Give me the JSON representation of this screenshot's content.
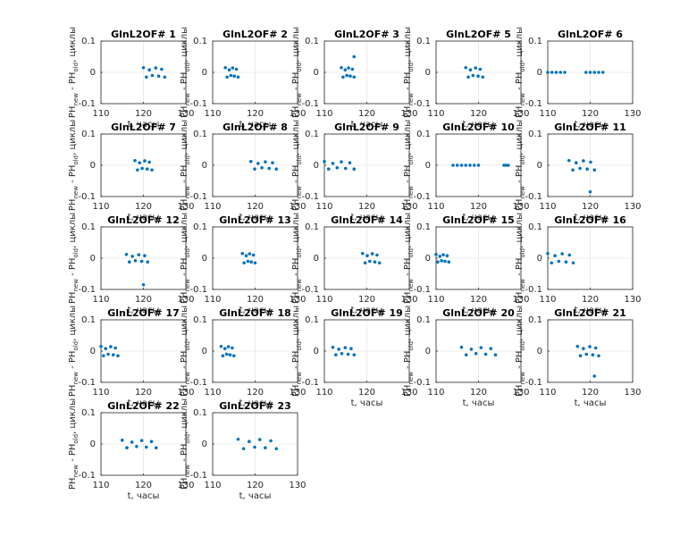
{
  "chart_data": [
    {
      "type": "scatter",
      "title": "GlnL2OF# 1",
      "xlabel": "t, часы",
      "ylabel_parts": [
        "PH",
        "new",
        " - PH",
        "old",
        ", циклы"
      ],
      "xlim": [
        110,
        130
      ],
      "xticks": [
        110,
        120,
        130
      ],
      "ylim": [
        -0.1,
        0.1
      ],
      "yticks": [
        -0.1,
        0,
        0.1
      ],
      "grid": true,
      "color": "#0072bd",
      "x": [
        120,
        120.7,
        121.4,
        122.1,
        122.9,
        123.6,
        124.3,
        125
      ],
      "y": [
        0.015,
        -0.015,
        0.008,
        -0.01,
        0.014,
        -0.012,
        0.01,
        -0.015
      ]
    },
    {
      "type": "scatter",
      "title": "GlnL2OF# 2",
      "xlabel": "t, часы",
      "ylabel_parts": [
        "PH",
        "new",
        " - PH",
        "old",
        ", циклы"
      ],
      "xlim": [
        110,
        130
      ],
      "xticks": [
        110,
        120,
        130
      ],
      "ylim": [
        -0.1,
        0.1
      ],
      "yticks": [
        -0.1,
        0,
        0.1
      ],
      "grid": true,
      "color": "#0072bd",
      "x": [
        113,
        113.4,
        113.9,
        114.3,
        114.7,
        115.1,
        115.6,
        116
      ],
      "y": [
        0.015,
        -0.015,
        0.008,
        -0.01,
        0.014,
        -0.012,
        0.01,
        -0.015
      ]
    },
    {
      "type": "scatter",
      "title": "GlnL2OF# 3",
      "xlabel": "t, часы",
      "ylabel_parts": [
        "PH",
        "new",
        " - PH",
        "old",
        ", циклы"
      ],
      "xlim": [
        110,
        130
      ],
      "xticks": [
        110,
        120,
        130
      ],
      "ylim": [
        -0.1,
        0.1
      ],
      "yticks": [
        -0.1,
        0,
        0.1
      ],
      "grid": true,
      "color": "#0072bd",
      "x": [
        114,
        114.4,
        114.9,
        115.3,
        115.7,
        116.1,
        116.6,
        117,
        117
      ],
      "y": [
        0.015,
        -0.015,
        0.008,
        -0.01,
        0.014,
        -0.012,
        0.01,
        -0.015,
        0.05
      ]
    },
    {
      "type": "scatter",
      "title": "GlnL2OF# 5",
      "xlabel": "t, часы",
      "ylabel_parts": [
        "PH",
        "new",
        " - PH",
        "old",
        ", циклы"
      ],
      "xlim": [
        110,
        130
      ],
      "xticks": [
        110,
        120,
        130
      ],
      "ylim": [
        -0.1,
        0.1
      ],
      "yticks": [
        -0.1,
        0,
        0.1
      ],
      "grid": true,
      "color": "#0072bd",
      "x": [
        117,
        117.6,
        118.1,
        118.7,
        119.3,
        119.9,
        120.4,
        121
      ],
      "y": [
        0.015,
        -0.015,
        0.008,
        -0.01,
        0.014,
        -0.012,
        0.01,
        -0.015
      ]
    },
    {
      "type": "scatter",
      "title": "GlnL2OF# 6",
      "xlabel": "t, часы",
      "ylabel_parts": [
        "PH",
        "new",
        " - PH",
        "old",
        ", циклы"
      ],
      "xlim": [
        110,
        130
      ],
      "xticks": [
        110,
        120,
        130
      ],
      "ylim": [
        -0.1,
        0.1
      ],
      "yticks": [
        -0.1,
        0,
        0.1
      ],
      "grid": true,
      "color": "#0072bd",
      "x": [
        110,
        111,
        112,
        113,
        114,
        119,
        120,
        121,
        122,
        123
      ],
      "y": [
        0,
        0,
        0,
        0,
        0,
        0,
        0,
        0,
        0,
        0
      ]
    },
    {
      "type": "scatter",
      "title": "GlnL2OF# 7",
      "xlabel": "t, часы",
      "ylabel_parts": [
        "PH",
        "new",
        " - PH",
        "old",
        ", циклы"
      ],
      "xlim": [
        110,
        130
      ],
      "xticks": [
        110,
        120,
        130
      ],
      "ylim": [
        -0.1,
        0.1
      ],
      "yticks": [
        -0.1,
        0,
        0.1
      ],
      "grid": true,
      "color": "#0072bd",
      "x": [
        118,
        118.6,
        119.1,
        119.7,
        120.3,
        120.9,
        121.4,
        122
      ],
      "y": [
        0.015,
        -0.015,
        0.008,
        -0.01,
        0.014,
        -0.012,
        0.01,
        -0.015
      ]
    },
    {
      "type": "scatter",
      "title": "GlnL2OF# 8",
      "xlabel": "t, часы",
      "ylabel_parts": [
        "PH",
        "new",
        " - PH",
        "old",
        ", циклы"
      ],
      "xlim": [
        110,
        130
      ],
      "xticks": [
        110,
        120,
        130
      ],
      "ylim": [
        -0.1,
        0.1
      ],
      "yticks": [
        -0.1,
        0,
        0.1
      ],
      "grid": true,
      "color": "#0072bd",
      "x": [
        119,
        119.9,
        120.7,
        121.6,
        122.4,
        123.3,
        124.1,
        125
      ],
      "y": [
        0.012,
        -0.012,
        0.006,
        -0.008,
        0.011,
        -0.01,
        0.008,
        -0.012
      ]
    },
    {
      "type": "scatter",
      "title": "GlnL2OF# 9",
      "xlabel": "t, часы",
      "ylabel_parts": [
        "PH",
        "new",
        " - PH",
        "old",
        ", циклы"
      ],
      "xlim": [
        110,
        130
      ],
      "xticks": [
        110,
        120,
        130
      ],
      "ylim": [
        -0.1,
        0.1
      ],
      "yticks": [
        -0.1,
        0,
        0.1
      ],
      "grid": true,
      "color": "#0072bd",
      "x": [
        110,
        111,
        112,
        113,
        114,
        115,
        116,
        117
      ],
      "y": [
        0.012,
        -0.012,
        0.006,
        -0.008,
        0.011,
        -0.01,
        0.008,
        -0.012
      ]
    },
    {
      "type": "scatter",
      "title": "GlnL2OF# 10",
      "xlabel": "t, часы",
      "ylabel_parts": [
        "PH",
        "new",
        " - PH",
        "old",
        ", циклы"
      ],
      "xlim": [
        110,
        130
      ],
      "xticks": [
        110,
        120,
        130
      ],
      "ylim": [
        -0.1,
        0.1
      ],
      "yticks": [
        -0.1,
        0,
        0.1
      ],
      "grid": true,
      "color": "#0072bd",
      "x": [
        114,
        115,
        116,
        117,
        118,
        119,
        120,
        126,
        126.5,
        127
      ],
      "y": [
        0,
        0,
        0,
        0,
        0,
        0,
        0,
        0,
        0,
        0
      ]
    },
    {
      "type": "scatter",
      "title": "GlnL2OF# 11",
      "xlabel": "t, часы",
      "ylabel_parts": [
        "PH",
        "new",
        " - PH",
        "old",
        ", циклы"
      ],
      "xlim": [
        110,
        130
      ],
      "xticks": [
        110,
        120,
        130
      ],
      "ylim": [
        -0.1,
        0.1
      ],
      "yticks": [
        -0.1,
        0,
        0.1
      ],
      "grid": true,
      "color": "#0072bd",
      "x": [
        115,
        115.9,
        116.7,
        117.6,
        118.4,
        119.3,
        120.1,
        121,
        120
      ],
      "y": [
        0.015,
        -0.015,
        0.008,
        -0.01,
        0.014,
        -0.012,
        0.01,
        -0.015,
        -0.085
      ]
    },
    {
      "type": "scatter",
      "title": "GlnL2OF# 12",
      "xlabel": "t, часы",
      "ylabel_parts": [
        "PH",
        "new",
        " - PH",
        "old",
        ", циклы"
      ],
      "xlim": [
        110,
        130
      ],
      "xticks": [
        110,
        120,
        130
      ],
      "ylim": [
        -0.1,
        0.1
      ],
      "yticks": [
        -0.1,
        0,
        0.1
      ],
      "grid": true,
      "color": "#0072bd",
      "x": [
        116,
        116.7,
        117.4,
        118.1,
        118.9,
        119.6,
        120.3,
        121,
        120
      ],
      "y": [
        0.012,
        -0.012,
        0.006,
        -0.008,
        0.011,
        -0.01,
        0.008,
        -0.012,
        -0.085
      ]
    },
    {
      "type": "scatter",
      "title": "GlnL2OF# 13",
      "xlabel": "t, часы",
      "ylabel_parts": [
        "PH",
        "new",
        " - PH",
        "old",
        ", циклы"
      ],
      "xlim": [
        110,
        130
      ],
      "xticks": [
        110,
        120,
        130
      ],
      "ylim": [
        -0.1,
        0.1
      ],
      "yticks": [
        -0.1,
        0,
        0.1
      ],
      "grid": true,
      "color": "#0072bd",
      "x": [
        117,
        117.4,
        117.9,
        118.3,
        118.7,
        119.1,
        119.6,
        120
      ],
      "y": [
        0.015,
        -0.015,
        0.008,
        -0.01,
        0.014,
        -0.012,
        0.01,
        -0.015
      ]
    },
    {
      "type": "scatter",
      "title": "GlnL2OF# 14",
      "xlabel": "t, часы",
      "ylabel_parts": [
        "PH",
        "new",
        " - PH",
        "old",
        ", циклы"
      ],
      "xlim": [
        110,
        130
      ],
      "xticks": [
        110,
        120,
        130
      ],
      "ylim": [
        -0.1,
        0.1
      ],
      "yticks": [
        -0.1,
        0,
        0.1
      ],
      "grid": true,
      "color": "#0072bd",
      "x": [
        119,
        119.6,
        120.1,
        120.7,
        121.3,
        121.9,
        122.4,
        123
      ],
      "y": [
        0.015,
        -0.015,
        0.008,
        -0.01,
        0.014,
        -0.012,
        0.01,
        -0.015
      ]
    },
    {
      "type": "scatter",
      "title": "GlnL2OF# 15",
      "xlabel": "t, часы",
      "ylabel_parts": [
        "PH",
        "new",
        " - PH",
        "old",
        ", циклы"
      ],
      "xlim": [
        110,
        130
      ],
      "xticks": [
        110,
        120,
        130
      ],
      "ylim": [
        -0.1,
        0.1
      ],
      "yticks": [
        -0.1,
        0,
        0.1
      ],
      "grid": true,
      "color": "#0072bd",
      "x": [
        110,
        110.4,
        110.9,
        111.3,
        111.7,
        112.1,
        112.6,
        113
      ],
      "y": [
        0.012,
        -0.012,
        0.006,
        -0.008,
        0.011,
        -0.01,
        0.008,
        -0.012
      ]
    },
    {
      "type": "scatter",
      "title": "GlnL2OF# 16",
      "xlabel": "t, часы",
      "ylabel_parts": [
        "PH",
        "new",
        " - PH",
        "old",
        ", циклы"
      ],
      "xlim": [
        110,
        130
      ],
      "xticks": [
        110,
        120,
        130
      ],
      "ylim": [
        -0.1,
        0.1
      ],
      "yticks": [
        -0.1,
        0,
        0.1
      ],
      "grid": true,
      "color": "#0072bd",
      "x": [
        110,
        110.9,
        111.7,
        112.6,
        113.4,
        114.3,
        115.1,
        116
      ],
      "y": [
        0.015,
        -0.015,
        0.008,
        -0.01,
        0.014,
        -0.012,
        0.01,
        -0.015
      ]
    },
    {
      "type": "scatter",
      "title": "GlnL2OF# 17",
      "xlabel": "t, часы",
      "ylabel_parts": [
        "PH",
        "new",
        " - PH",
        "old",
        ", циклы"
      ],
      "xlim": [
        110,
        130
      ],
      "xticks": [
        110,
        120,
        130
      ],
      "ylim": [
        -0.1,
        0.1
      ],
      "yticks": [
        -0.1,
        0,
        0.1
      ],
      "grid": true,
      "color": "#0072bd",
      "x": [
        110,
        110.6,
        111.1,
        111.7,
        112.3,
        112.9,
        113.4,
        114
      ],
      "y": [
        0.015,
        -0.015,
        0.008,
        -0.01,
        0.014,
        -0.012,
        0.01,
        -0.015
      ]
    },
    {
      "type": "scatter",
      "title": "GlnL2OF# 18",
      "xlabel": "t, часы",
      "ylabel_parts": [
        "PH",
        "new",
        " - PH",
        "old",
        ", циклы"
      ],
      "xlim": [
        110,
        130
      ],
      "xticks": [
        110,
        120,
        130
      ],
      "ylim": [
        -0.1,
        0.1
      ],
      "yticks": [
        -0.1,
        0,
        0.1
      ],
      "grid": true,
      "color": "#0072bd",
      "x": [
        112,
        112.4,
        112.9,
        113.3,
        113.7,
        114.1,
        114.6,
        115
      ],
      "y": [
        0.015,
        -0.015,
        0.008,
        -0.01,
        0.014,
        -0.012,
        0.01,
        -0.015
      ]
    },
    {
      "type": "scatter",
      "title": "GlnL2OF# 19",
      "xlabel": "t, часы",
      "ylabel_parts": [
        "PH",
        "new",
        " - PH",
        "old",
        ", циклы"
      ],
      "xlim": [
        110,
        130
      ],
      "xticks": [
        110,
        120,
        130
      ],
      "ylim": [
        -0.1,
        0.1
      ],
      "yticks": [
        -0.1,
        0,
        0.1
      ],
      "grid": true,
      "color": "#0072bd",
      "x": [
        112,
        112.7,
        113.4,
        114.1,
        114.9,
        115.6,
        116.3,
        117
      ],
      "y": [
        0.012,
        -0.012,
        0.006,
        -0.008,
        0.011,
        -0.01,
        0.008,
        -0.012
      ]
    },
    {
      "type": "scatter",
      "title": "GlnL2OF# 20",
      "xlabel": "t, часы",
      "ylabel_parts": [
        "PH",
        "new",
        " - PH",
        "old",
        ", циклы"
      ],
      "xlim": [
        110,
        130
      ],
      "xticks": [
        110,
        120,
        130
      ],
      "ylim": [
        -0.1,
        0.1
      ],
      "yticks": [
        -0.1,
        0,
        0.1
      ],
      "grid": true,
      "color": "#0072bd",
      "x": [
        116,
        117.1,
        118.3,
        119.4,
        120.6,
        121.7,
        122.9,
        124
      ],
      "y": [
        0.012,
        -0.012,
        0.006,
        -0.008,
        0.011,
        -0.01,
        0.008,
        -0.012
      ]
    },
    {
      "type": "scatter",
      "title": "GlnL2OF# 21",
      "xlabel": "t, часы",
      "ylabel_parts": [
        "PH",
        "new",
        " - PH",
        "old",
        ", циклы"
      ],
      "xlim": [
        110,
        130
      ],
      "xticks": [
        110,
        120,
        130
      ],
      "ylim": [
        -0.1,
        0.1
      ],
      "yticks": [
        -0.1,
        0,
        0.1
      ],
      "grid": true,
      "color": "#0072bd",
      "x": [
        117,
        117.7,
        118.4,
        119.1,
        119.9,
        120.6,
        121.3,
        122,
        121
      ],
      "y": [
        0.015,
        -0.015,
        0.008,
        -0.01,
        0.014,
        -0.012,
        0.01,
        -0.015,
        -0.08
      ]
    },
    {
      "type": "scatter",
      "title": "GlnL2OF# 22",
      "xlabel": "t, часы",
      "ylabel_parts": [
        "PH",
        "new",
        " - PH",
        "old",
        ", циклы"
      ],
      "xlim": [
        110,
        130
      ],
      "xticks": [
        110,
        120,
        130
      ],
      "ylim": [
        -0.1,
        0.1
      ],
      "yticks": [
        -0.1,
        0,
        0.1
      ],
      "grid": true,
      "color": "#0072bd",
      "x": [
        115,
        116.1,
        117.3,
        118.4,
        119.6,
        120.7,
        121.9,
        123
      ],
      "y": [
        0.012,
        -0.012,
        0.006,
        -0.008,
        0.011,
        -0.01,
        0.008,
        -0.012
      ]
    },
    {
      "type": "scatter",
      "title": "GlnL2OF# 23",
      "xlabel": "t, часы",
      "ylabel_parts": [
        "PH",
        "new",
        " - PH",
        "old",
        ", циклы"
      ],
      "xlim": [
        110,
        130
      ],
      "xticks": [
        110,
        120,
        130
      ],
      "ylim": [
        -0.1,
        0.1
      ],
      "yticks": [
        -0.1,
        0,
        0.1
      ],
      "grid": true,
      "color": "#0072bd",
      "x": [
        116,
        117.3,
        118.6,
        119.9,
        121.1,
        122.4,
        123.7,
        125
      ],
      "y": [
        0.015,
        -0.015,
        0.008,
        -0.01,
        0.014,
        -0.012,
        0.01,
        -0.015
      ]
    }
  ]
}
